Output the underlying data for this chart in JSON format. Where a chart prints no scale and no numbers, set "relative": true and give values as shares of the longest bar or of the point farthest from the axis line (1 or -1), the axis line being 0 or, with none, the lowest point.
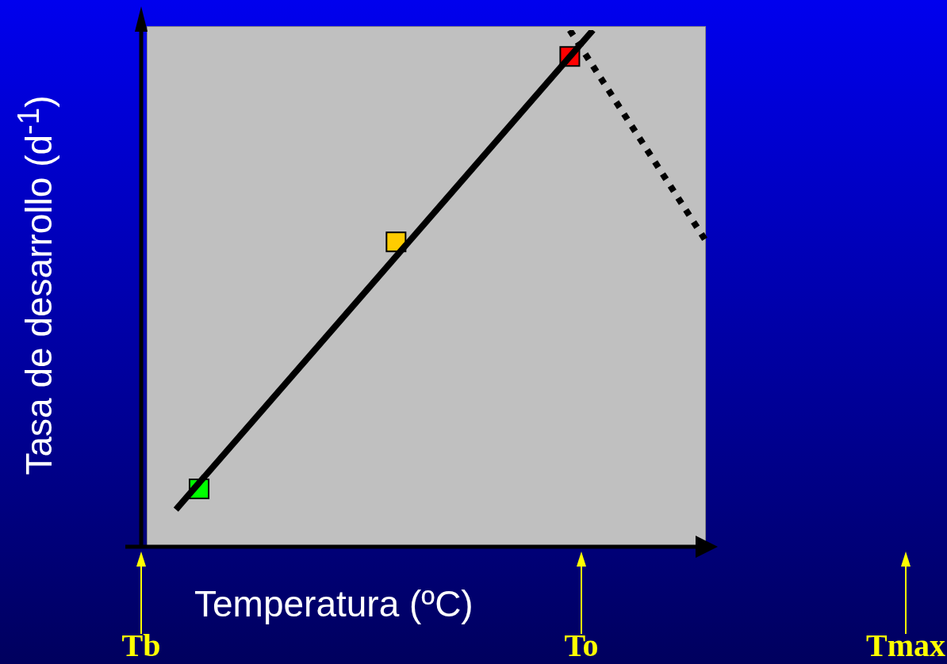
{
  "chart_data": {
    "type": "line",
    "relative": true,
    "xlabel": "Temperatura (ºC)",
    "ylabel": "Tasa de desarrollo (d$^{-1}$)",
    "tick_labels": "x",
    "grid": false,
    "legend": false,
    "categories": [
      "Tb",
      null,
      null,
      null,
      null,
      null,
      null,
      null,
      null,
      null,
      null,
      null,
      null,
      null,
      null,
      null,
      null,
      null,
      null,
      null,
      null,
      null,
      null,
      null,
      null,
      null,
      null,
      null,
      null,
      null,
      null,
      null,
      null,
      null,
      null,
      null,
      null,
      null,
      "To",
      null,
      null,
      null,
      null,
      null,
      null,
      null,
      null,
      null,
      null,
      null,
      null,
      null,
      null,
      null,
      null,
      null,
      null,
      null,
      null,
      null,
      null,
      null,
      null,
      null,
      null,
      null,
      "Tmax"
    ],
    "series": [
      {
        "color": "#000000",
        "line_style": "solid",
        "marker": "none",
        "values": [
          null,
          null,
          null,
          0.072,
          null,
          null,
          null,
          null,
          null,
          null,
          null,
          null,
          null,
          null,
          null,
          null,
          null,
          null,
          null,
          null,
          null,
          null,
          null,
          null,
          null,
          null,
          null,
          null,
          null,
          null,
          null,
          null,
          null,
          null,
          null,
          null,
          null,
          null,
          null,
          1,
          null,
          null,
          null,
          null,
          null,
          null,
          null,
          null,
          null,
          null,
          null,
          null,
          null,
          null,
          null,
          null,
          null,
          null,
          null,
          null,
          null,
          null,
          null,
          null,
          null,
          null,
          null
        ]
      },
      {
        "color": "#000000",
        "line_style": "dotted",
        "marker": "none",
        "values": [
          null,
          null,
          null,
          null,
          null,
          null,
          null,
          null,
          null,
          null,
          null,
          null,
          null,
          null,
          null,
          null,
          null,
          null,
          null,
          null,
          null,
          null,
          null,
          null,
          null,
          null,
          null,
          null,
          null,
          null,
          null,
          null,
          null,
          null,
          null,
          null,
          null,
          1,
          null,
          null,
          null,
          null,
          null,
          null,
          null,
          null,
          null,
          null,
          null,
          0.583,
          null,
          null,
          null,
          null,
          null,
          null,
          null,
          null,
          null,
          null,
          null,
          null,
          null,
          null,
          null,
          null,
          null
        ]
      },
      {
        "type": "scatter",
        "marker": "square",
        "colors": [
          null,
          null,
          null,
          null,
          null,
          "#00ff00",
          null,
          null,
          null,
          null,
          null,
          null,
          null,
          null,
          null,
          null,
          null,
          null,
          null,
          null,
          null,
          null,
          "#ffcc00",
          null,
          null,
          null,
          null,
          null,
          null,
          null,
          null,
          null,
          null,
          null,
          null,
          null,
          null,
          "#ff0000",
          null,
          null,
          null,
          null,
          null,
          null,
          null,
          null,
          null,
          null,
          null,
          null,
          null,
          null,
          null,
          null,
          null,
          null,
          null,
          null,
          null,
          null,
          null,
          null,
          null,
          null,
          null,
          null,
          null
        ],
        "values": [
          null,
          null,
          null,
          null,
          null,
          0.112,
          null,
          null,
          null,
          null,
          null,
          null,
          null,
          null,
          null,
          null,
          null,
          null,
          null,
          null,
          null,
          null,
          0.59,
          null,
          null,
          null,
          null,
          null,
          null,
          null,
          null,
          null,
          null,
          null,
          null,
          null,
          null,
          0.949,
          null,
          null,
          null,
          null,
          null,
          null,
          null,
          null,
          null,
          null,
          null,
          null,
          null,
          null,
          null,
          null,
          null,
          null,
          null,
          null,
          null,
          null,
          null,
          null,
          null,
          null,
          null,
          null,
          null
        ]
      }
    ]
  }
}
